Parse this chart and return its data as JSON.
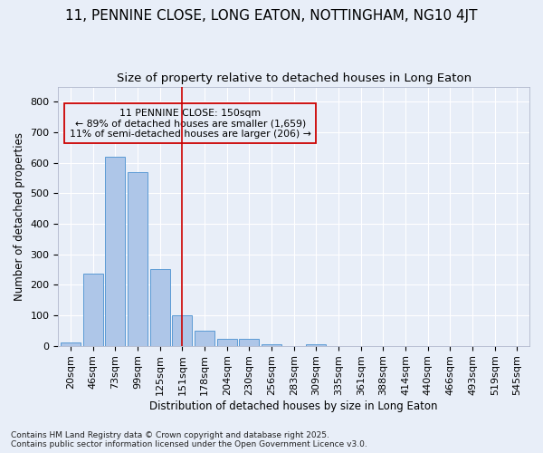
{
  "title_line1": "11, PENNINE CLOSE, LONG EATON, NOTTINGHAM, NG10 4JT",
  "title_line2": "Size of property relative to detached houses in Long Eaton",
  "xlabel": "Distribution of detached houses by size in Long Eaton",
  "ylabel": "Number of detached properties",
  "categories": [
    "20sqm",
    "46sqm",
    "73sqm",
    "99sqm",
    "125sqm",
    "151sqm",
    "178sqm",
    "204sqm",
    "230sqm",
    "256sqm",
    "283sqm",
    "309sqm",
    "335sqm",
    "361sqm",
    "388sqm",
    "414sqm",
    "440sqm",
    "466sqm",
    "493sqm",
    "519sqm",
    "545sqm"
  ],
  "values": [
    12,
    236,
    621,
    570,
    252,
    99,
    50,
    22,
    22,
    6,
    0,
    5,
    0,
    0,
    0,
    0,
    0,
    0,
    0,
    0,
    0
  ],
  "bar_color": "#aec6e8",
  "bar_edge_color": "#5b9bd5",
  "vline_color": "#cc0000",
  "vline_index": 5,
  "annotation_title": "11 PENNINE CLOSE: 150sqm",
  "annotation_line1": "← 89% of detached houses are smaller (1,659)",
  "annotation_line2": "11% of semi-detached houses are larger (206) →",
  "annotation_box_color": "#cc0000",
  "ylim": [
    0,
    850
  ],
  "yticks": [
    0,
    100,
    200,
    300,
    400,
    500,
    600,
    700,
    800
  ],
  "footer_line1": "Contains HM Land Registry data © Crown copyright and database right 2025.",
  "footer_line2": "Contains public sector information licensed under the Open Government Licence v3.0.",
  "bg_color": "#e8eef8",
  "grid_color": "#ffffff",
  "title_fontsize": 11,
  "subtitle_fontsize": 9.5,
  "axis_label_fontsize": 8.5,
  "tick_fontsize": 8,
  "footer_fontsize": 6.5
}
